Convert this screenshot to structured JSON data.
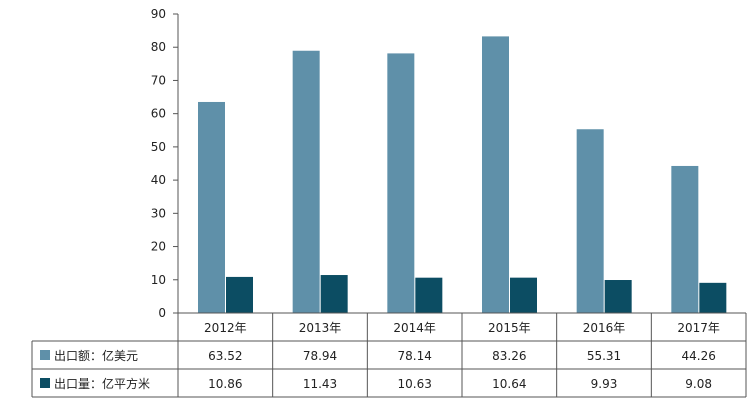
{
  "chart_data": {
    "type": "bar",
    "categories": [
      "2012年",
      "2013年",
      "2014年",
      "2015年",
      "2016年",
      "2017年"
    ],
    "series": [
      {
        "name": "出口额：亿美元",
        "color": "#5f90a9",
        "values": [
          63.52,
          78.94,
          78.14,
          83.26,
          55.31,
          44.26
        ],
        "labels": [
          "63.52",
          "78.94",
          "78.14",
          "83.26",
          "55.31",
          "44.26"
        ]
      },
      {
        "name": "出口量：亿平方米",
        "color": "#0c4d63",
        "values": [
          10.86,
          11.43,
          10.63,
          10.64,
          9.93,
          9.08
        ],
        "labels": [
          "10.86",
          "11.43",
          "10.63",
          "10.64",
          "9.93",
          "9.08"
        ]
      }
    ],
    "ylim": [
      0,
      90
    ],
    "yticks": [
      "0",
      "10",
      "20",
      "30",
      "40",
      "50",
      "60",
      "70",
      "80",
      "90"
    ],
    "data_table": true,
    "legend": "in-table"
  }
}
